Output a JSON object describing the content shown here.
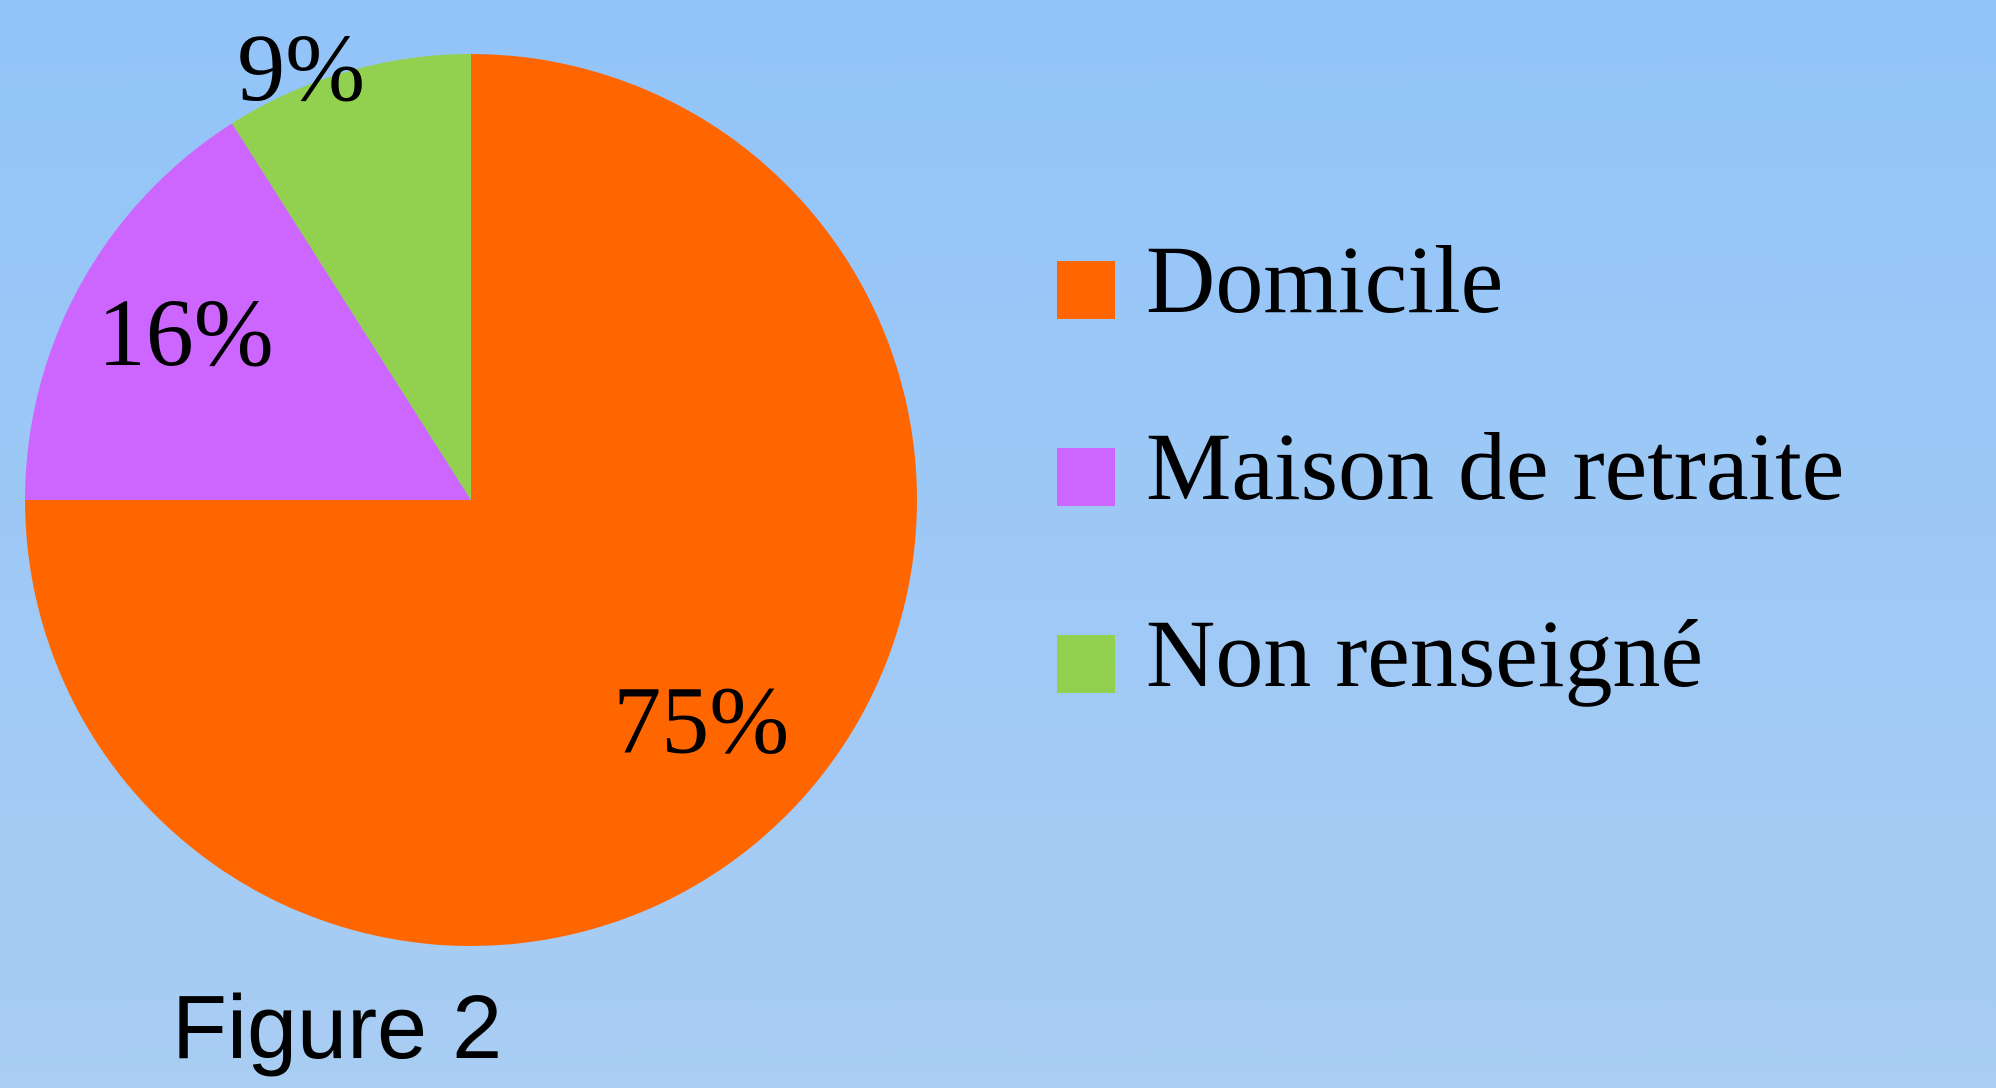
{
  "chart_data": {
    "type": "pie",
    "categories": [
      "Domicile",
      "Maison de retraite",
      "Non renseigné"
    ],
    "values": [
      75,
      16,
      9
    ],
    "value_labels": [
      "75%",
      "16%",
      "9%"
    ],
    "colors": [
      "#ff6600",
      "#cc66ff",
      "#92d050"
    ],
    "legend": "right",
    "caption": "Figure 2"
  }
}
